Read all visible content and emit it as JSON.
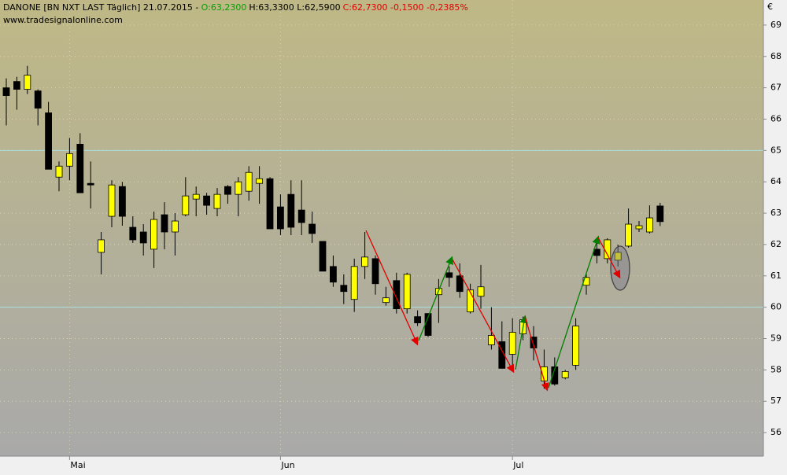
{
  "chart_data": {
    "type": "candlestick",
    "header": [
      "DANONE [BN NXT LAST Täglich] 21.07.2015 -",
      "O:63,2300",
      "H:63,3300 L:62,5900",
      "C:62,7300 -0,1500 -0,2385%"
    ],
    "header_colors": [
      "#000000",
      "#00a000",
      "#000000",
      "#e00000"
    ],
    "source": "www.tradesignalonline.com",
    "unit": "€",
    "categories": [
      null,
      null,
      null,
      null,
      null,
      null,
      "Mai",
      null,
      null,
      null,
      null,
      null,
      null,
      null,
      null,
      null,
      null,
      null,
      null,
      null,
      null,
      null,
      null,
      null,
      null,
      null,
      "Jun",
      null,
      null,
      null,
      null,
      null,
      null,
      null,
      null,
      null,
      null,
      null,
      null,
      null,
      null,
      null,
      null,
      null,
      null,
      null,
      null,
      null,
      "Jul",
      null,
      null,
      null,
      null,
      null,
      null,
      null,
      null,
      null,
      null,
      null,
      null,
      null,
      null
    ],
    "open": [
      67.0,
      67.2,
      66.95,
      66.9,
      66.2,
      64.15,
      64.5,
      65.2,
      63.95,
      61.75,
      62.9,
      63.85,
      62.55,
      62.4,
      61.85,
      62.95,
      62.4,
      62.95,
      63.45,
      63.55,
      63.15,
      63.85,
      63.6,
      63.7,
      63.95,
      64.1,
      63.2,
      63.6,
      63.1,
      62.65,
      62.1,
      61.3,
      60.7,
      60.25,
      61.3,
      61.55,
      60.15,
      60.85,
      59.95,
      59.7,
      59.8,
      60.4,
      61.1,
      61.0,
      59.85,
      60.35,
      58.8,
      58.9,
      58.5,
      59.15,
      59.05,
      57.65,
      58.1,
      57.75,
      58.15,
      60.7,
      61.85,
      61.55,
      61.5,
      61.95,
      62.5,
      62.4,
      63.23
    ],
    "high": [
      67.3,
      67.35,
      67.7,
      66.95,
      66.55,
      64.65,
      65.4,
      65.55,
      64.65,
      62.4,
      64.05,
      64.0,
      62.9,
      62.65,
      63.05,
      63.35,
      63.0,
      64.15,
      63.85,
      63.65,
      63.8,
      63.9,
      64.15,
      64.5,
      64.5,
      64.15,
      63.6,
      64.05,
      64.05,
      63.05,
      62.1,
      61.65,
      61.05,
      61.55,
      62.4,
      61.65,
      60.65,
      61.1,
      61.1,
      59.9,
      59.8,
      60.9,
      61.3,
      61.4,
      60.75,
      61.35,
      60.0,
      59.55,
      59.65,
      59.7,
      59.4,
      58.65,
      58.4,
      58.0,
      59.65,
      61.1,
      62.15,
      62.2,
      62.0,
      63.15,
      62.75,
      63.25,
      63.33
    ],
    "low": [
      65.8,
      66.3,
      66.8,
      65.8,
      64.4,
      63.7,
      64.05,
      63.65,
      63.15,
      61.05,
      62.55,
      62.6,
      62.05,
      61.65,
      61.25,
      61.85,
      61.65,
      62.9,
      62.9,
      62.95,
      62.9,
      63.3,
      62.9,
      63.4,
      63.3,
      62.5,
      62.3,
      62.3,
      62.3,
      62.05,
      61.15,
      60.65,
      60.1,
      59.85,
      60.9,
      60.4,
      60.05,
      59.8,
      59.8,
      59.4,
      59.05,
      59.5,
      60.65,
      60.3,
      59.8,
      59.95,
      58.65,
      58.05,
      57.95,
      58.95,
      58.3,
      57.4,
      57.5,
      57.7,
      58.0,
      60.4,
      61.4,
      61.4,
      61.3,
      61.9,
      62.4,
      62.35,
      62.59
    ],
    "close": [
      66.75,
      66.95,
      67.4,
      66.35,
      64.4,
      64.5,
      64.9,
      63.65,
      63.9,
      62.15,
      63.9,
      62.9,
      62.15,
      62.05,
      62.8,
      62.4,
      62.75,
      63.55,
      63.6,
      63.25,
      63.6,
      63.6,
      64.0,
      64.3,
      64.1,
      62.5,
      62.5,
      62.55,
      62.7,
      62.35,
      61.15,
      60.8,
      60.5,
      61.3,
      61.6,
      60.75,
      60.3,
      59.95,
      61.05,
      59.5,
      59.1,
      60.6,
      60.95,
      60.5,
      60.55,
      60.65,
      59.1,
      58.05,
      59.2,
      59.6,
      58.7,
      58.1,
      57.55,
      57.95,
      59.4,
      60.95,
      61.65,
      62.15,
      61.75,
      62.65,
      62.6,
      62.85,
      62.73
    ],
    "up_color": "#ffff00",
    "down_color": "#000000",
    "ylim": [
      55.25,
      69.8
    ],
    "yticks": [
      56,
      57,
      58,
      59,
      60,
      61,
      62,
      63,
      64,
      65,
      66,
      67,
      68,
      69
    ],
    "reference_lines": [
      65,
      60
    ],
    "grid": true
  }
}
